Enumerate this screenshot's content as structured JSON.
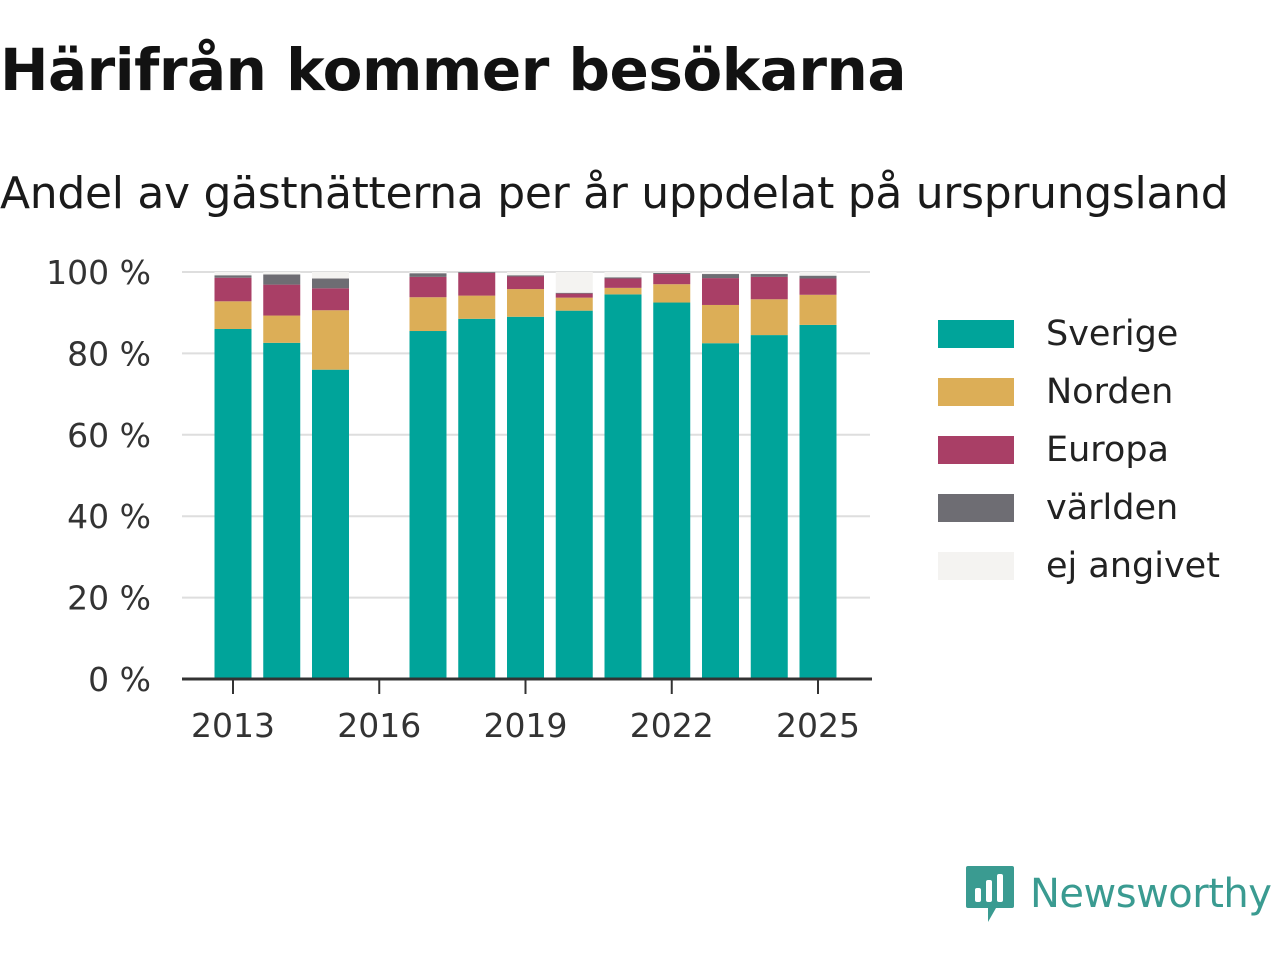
{
  "header": {
    "title": "Härifrån kommer besökarna",
    "subtitle": "Andel av gästnätterna per år uppdelat på ursprungsland"
  },
  "colors": {
    "Sverige": "#00a49a",
    "Norden": "#dcae57",
    "Europa": "#a93f66",
    "världen": "#6e6d73",
    "ej angivet": "#f4f3f1"
  },
  "chart_data": {
    "type": "bar",
    "stacked": true,
    "categories": [
      2013,
      2014,
      2015,
      2016,
      2017,
      2018,
      2019,
      2020,
      2021,
      2022,
      2023,
      2024,
      2025
    ],
    "x_tick_labels": [
      "2013",
      "2016",
      "2019",
      "2022",
      "2025"
    ],
    "y_tick_labels": [
      "0 %",
      "20 %",
      "40 %",
      "60 %",
      "80 %",
      "100 %"
    ],
    "ylim": [
      0,
      100
    ],
    "grid": true,
    "legend_position": "right",
    "series": [
      {
        "name": "Sverige",
        "values": [
          86,
          82.6,
          76,
          null,
          85.5,
          88.5,
          89,
          90.5,
          94.5,
          92.5,
          82.5,
          84.5,
          87
        ]
      },
      {
        "name": "Norden",
        "values": [
          6.8,
          6.7,
          14.6,
          null,
          8.3,
          5.7,
          6.8,
          3.2,
          1.6,
          4.5,
          9.4,
          8.8,
          7.4
        ]
      },
      {
        "name": "Europa",
        "values": [
          5.8,
          7.6,
          5.4,
          null,
          5.0,
          5.6,
          3.1,
          1.0,
          2.3,
          2.5,
          6.6,
          5.5,
          4.0
        ]
      },
      {
        "name": "världen",
        "values": [
          0.6,
          2.5,
          2.4,
          null,
          0.9,
          0.2,
          0.3,
          0.2,
          0.3,
          0.3,
          1.0,
          0.7,
          0.7
        ]
      },
      {
        "name": "ej angivet",
        "values": [
          0.8,
          0.6,
          1.6,
          null,
          0.3,
          0,
          0.8,
          5.1,
          1.3,
          0.2,
          0.5,
          0.5,
          0.9
        ]
      }
    ]
  },
  "brand": {
    "name": "Newsworthy"
  }
}
